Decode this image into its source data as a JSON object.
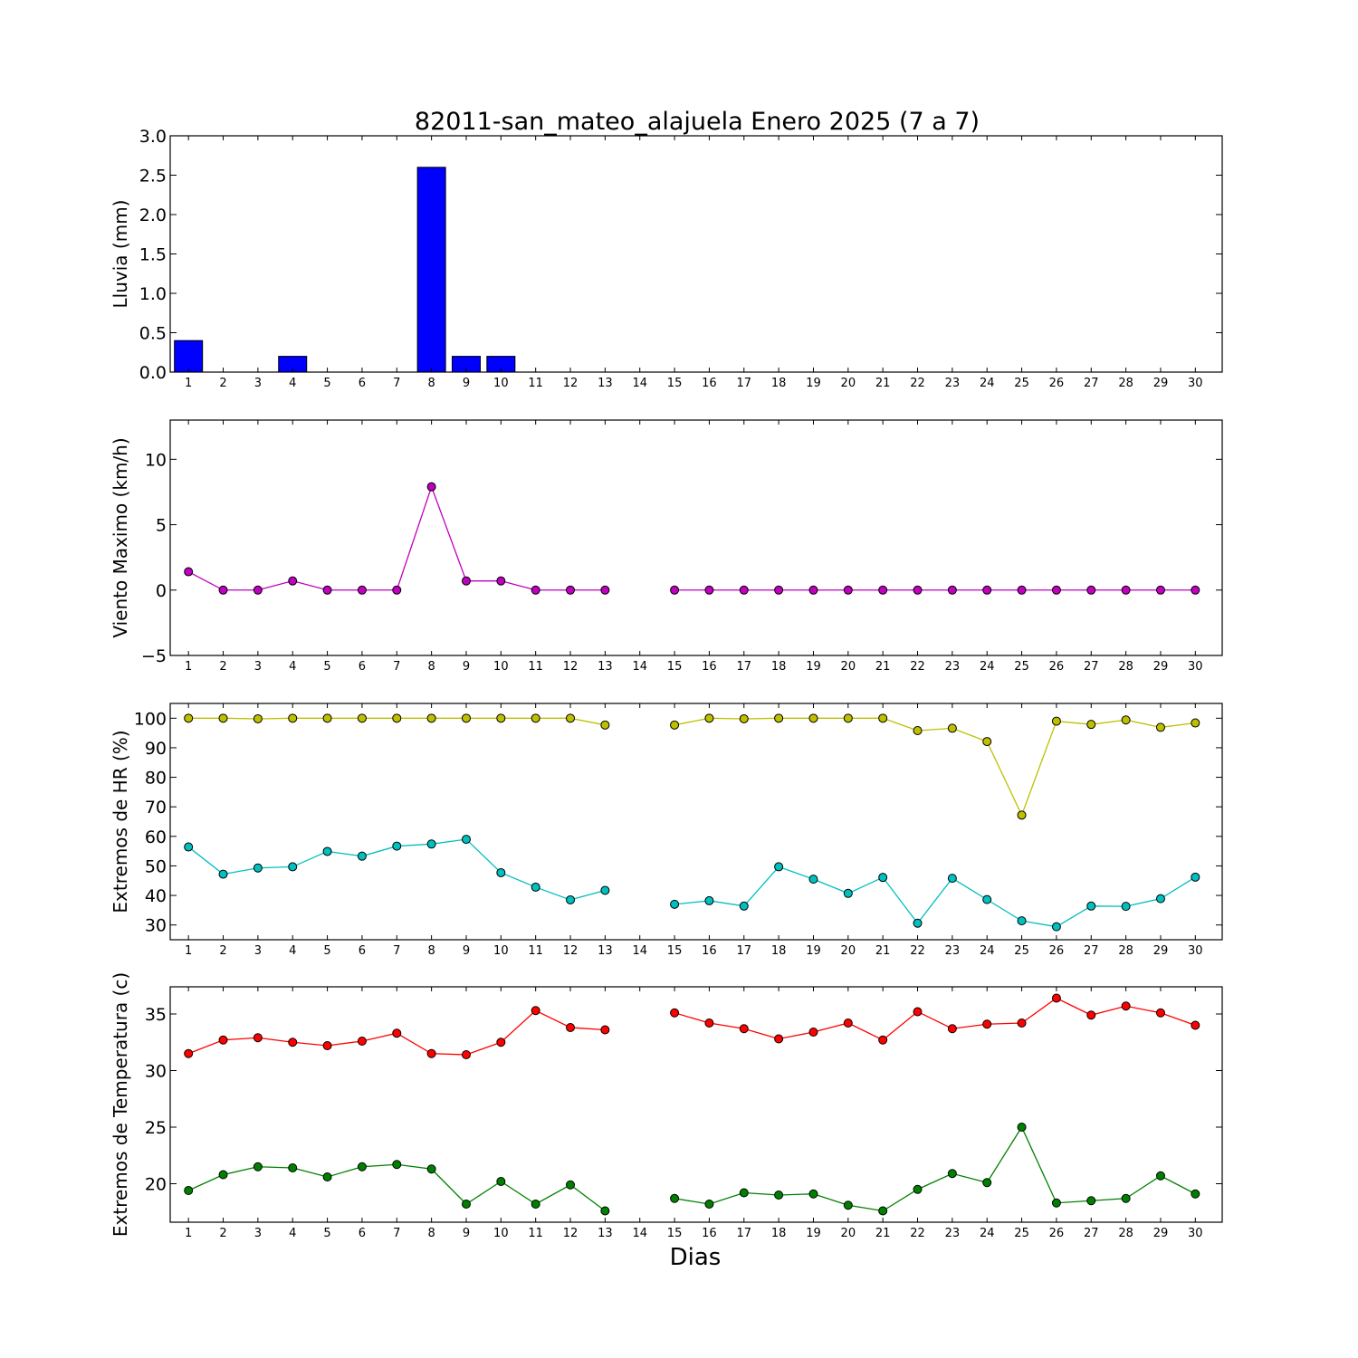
{
  "figure": {
    "title": "82011-san_mateo_alajuela Enero 2025  (7 a 7)",
    "xlabel": "Dias"
  },
  "colors": {
    "rain": "#0000ff",
    "wind": "#bf00bf",
    "hr_max": "#bfbf00",
    "hr_min": "#00bfbf",
    "temp_max": "#ff0000",
    "temp_min": "#008000"
  },
  "chart_data": [
    {
      "type": "bar",
      "ylabel": "Lluvia (mm)",
      "ylim": [
        0,
        3.0
      ],
      "yticks": [
        "0.0",
        "0.5",
        "1.0",
        "1.5",
        "2.0",
        "2.5",
        "3.0"
      ],
      "categories": [
        "1",
        "2",
        "3",
        "4",
        "5",
        "6",
        "7",
        "8",
        "9",
        "10",
        "11",
        "12",
        "13",
        "14",
        "15",
        "16",
        "17",
        "18",
        "19",
        "20",
        "21",
        "22",
        "23",
        "24",
        "25",
        "26",
        "27",
        "28",
        "29",
        "30"
      ],
      "series": [
        {
          "color_key": "rain",
          "values": [
            0.4,
            0,
            0,
            0.2,
            0,
            0,
            0,
            2.6,
            0.2,
            0.2,
            0,
            0,
            0,
            0,
            0,
            0,
            0,
            0,
            0,
            0,
            0,
            0,
            0,
            0,
            0,
            0,
            0,
            0,
            0,
            0
          ]
        }
      ]
    },
    {
      "type": "line",
      "ylabel": "Viento Maximo (km/h)",
      "ylim": [
        -5,
        13
      ],
      "yticks": [
        "−5",
        "0",
        "5",
        "10"
      ],
      "categories": [
        "1",
        "2",
        "3",
        "4",
        "5",
        "6",
        "7",
        "8",
        "9",
        "10",
        "11",
        "12",
        "13",
        "14",
        "15",
        "16",
        "17",
        "18",
        "19",
        "20",
        "21",
        "22",
        "23",
        "24",
        "25",
        "26",
        "27",
        "28",
        "29",
        "30"
      ],
      "series": [
        {
          "color_key": "wind",
          "values": [
            1.4,
            0,
            0,
            0.7,
            0,
            0,
            0,
            7.9,
            0.7,
            0.7,
            0,
            0,
            0,
            null,
            0,
            0,
            0,
            0,
            0,
            0,
            0,
            0,
            0,
            0,
            0,
            0,
            0,
            0,
            0,
            0
          ]
        }
      ]
    },
    {
      "type": "line",
      "ylabel": "Extremos de HR (%)",
      "ylim": [
        25,
        105
      ],
      "yticks": [
        "30",
        "40",
        "50",
        "60",
        "70",
        "80",
        "90",
        "100"
      ],
      "categories": [
        "1",
        "2",
        "3",
        "4",
        "5",
        "6",
        "7",
        "8",
        "9",
        "10",
        "11",
        "12",
        "13",
        "14",
        "15",
        "16",
        "17",
        "18",
        "19",
        "20",
        "21",
        "22",
        "23",
        "24",
        "25",
        "26",
        "27",
        "28",
        "29",
        "30"
      ],
      "series": [
        {
          "color_key": "hr_max",
          "values": [
            100,
            100,
            99.8,
            100,
            100,
            100,
            100,
            100,
            100,
            100,
            100,
            100,
            97.7,
            null,
            97.7,
            100,
            99.8,
            100,
            100,
            100,
            100,
            95.8,
            96.6,
            92.1,
            67.2,
            99,
            97.9,
            99.4,
            96.9,
            98.4
          ]
        },
        {
          "color_key": "hr_min",
          "values": [
            56.4,
            47.2,
            49.3,
            49.7,
            54.9,
            53.3,
            56.7,
            57.4,
            59,
            47.7,
            42.8,
            38.5,
            41.7,
            null,
            37,
            38.2,
            36.4,
            49.7,
            45.5,
            40.7,
            46.1,
            30.6,
            45.8,
            38.6,
            31.4,
            29.4,
            36.4,
            36.3,
            38.9,
            46.2
          ]
        }
      ]
    },
    {
      "type": "line",
      "ylabel": "Extremos de Temperatura (c)",
      "ylim": [
        16.6,
        37.4
      ],
      "yticks": [
        "20",
        "25",
        "30",
        "35"
      ],
      "categories": [
        "1",
        "2",
        "3",
        "4",
        "5",
        "6",
        "7",
        "8",
        "9",
        "10",
        "11",
        "12",
        "13",
        "14",
        "15",
        "16",
        "17",
        "18",
        "19",
        "20",
        "21",
        "22",
        "23",
        "24",
        "25",
        "26",
        "27",
        "28",
        "29",
        "30"
      ],
      "series": [
        {
          "color_key": "temp_max",
          "values": [
            31.5,
            32.7,
            32.9,
            32.5,
            32.2,
            32.6,
            33.3,
            31.5,
            31.4,
            32.5,
            35.3,
            33.8,
            33.6,
            null,
            35.1,
            34.2,
            33.7,
            32.8,
            33.4,
            34.2,
            32.7,
            35.2,
            33.7,
            34.1,
            34.2,
            36.4,
            34.9,
            35.7,
            35.1,
            34
          ]
        },
        {
          "color_key": "temp_min",
          "values": [
            19.4,
            20.8,
            21.5,
            21.4,
            20.6,
            21.5,
            21.7,
            21.3,
            18.2,
            20.2,
            18.2,
            19.9,
            17.6,
            null,
            18.7,
            18.2,
            19.2,
            19,
            19.1,
            18.1,
            17.6,
            19.5,
            20.9,
            20.1,
            25,
            18.3,
            18.5,
            18.7,
            20.7,
            19.1
          ]
        }
      ]
    }
  ]
}
